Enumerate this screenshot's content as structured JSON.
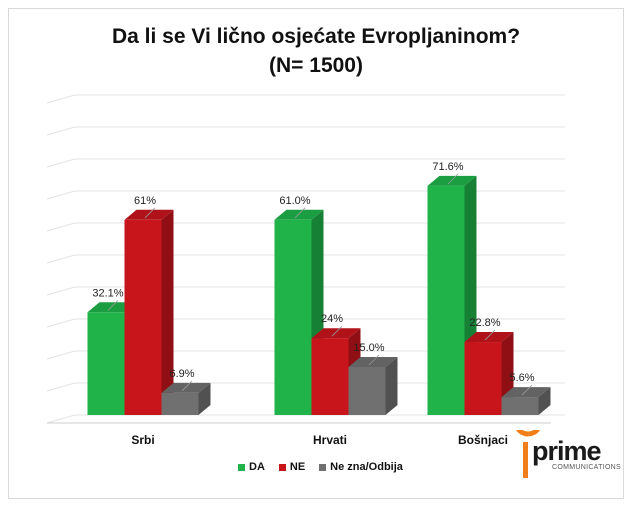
{
  "chart_data": {
    "type": "bar",
    "title": "Da li se Vi lično osjećate Evropljaninom?",
    "subtitle": "(N= 1500)",
    "categories": [
      "Srbi",
      "Hrvati",
      "Bošnjaci"
    ],
    "ylim": [
      0,
      100
    ],
    "grid": true,
    "legend_position": "bottom",
    "series": [
      {
        "name": "DA",
        "color": "#1fb34a",
        "values": [
          32.1,
          61.0,
          71.6
        ],
        "labels": [
          "32.1%",
          "61.0%",
          "71.6%"
        ]
      },
      {
        "name": "NE",
        "color": "#c8151c",
        "values": [
          61,
          24,
          22.8
        ],
        "labels": [
          "61%",
          "24%",
          "22.8%"
        ]
      },
      {
        "name": "Ne zna/Odbija",
        "color": "#707070",
        "values": [
          6.9,
          15.0,
          5.6
        ],
        "labels": [
          "6.9%",
          "15.0%",
          "5.6%"
        ]
      }
    ]
  },
  "logo": {
    "word": "prime",
    "subtitle": "COMMUNICATIONS",
    "accent": "#f07f1a"
  }
}
